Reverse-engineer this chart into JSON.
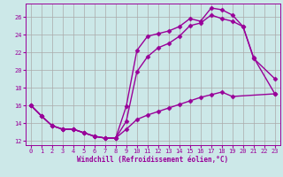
{
  "xlabel": "Windchill (Refroidissement éolien,°C)",
  "bg_color": "#cce8e8",
  "line_color": "#990099",
  "grid_color": "#aaaaaa",
  "xlim": [
    -0.5,
    23.5
  ],
  "ylim": [
    11.5,
    27.5
  ],
  "xticks": [
    0,
    1,
    2,
    3,
    4,
    5,
    6,
    7,
    8,
    9,
    10,
    11,
    12,
    13,
    14,
    15,
    16,
    17,
    18,
    19,
    20,
    21,
    22,
    23
  ],
  "yticks": [
    12,
    14,
    16,
    18,
    20,
    22,
    24,
    26
  ],
  "line1_x": [
    0,
    1,
    2,
    3,
    4,
    5,
    6,
    7,
    8,
    9,
    10,
    11,
    12,
    13,
    14,
    15,
    16,
    17,
    18,
    19,
    20,
    21,
    23
  ],
  "line1_y": [
    16.0,
    14.8,
    13.7,
    13.3,
    13.3,
    12.9,
    12.5,
    12.3,
    12.3,
    15.9,
    22.2,
    23.8,
    24.1,
    24.4,
    24.9,
    25.8,
    25.5,
    27.0,
    26.8,
    26.2,
    24.9,
    21.3,
    19.0
  ],
  "line2_x": [
    0,
    1,
    2,
    3,
    4,
    5,
    6,
    7,
    8,
    9,
    10,
    11,
    12,
    13,
    14,
    15,
    16,
    17,
    18,
    19,
    20,
    21,
    23
  ],
  "line2_y": [
    16.0,
    14.8,
    13.7,
    13.3,
    13.3,
    12.9,
    12.5,
    12.3,
    12.3,
    14.2,
    19.8,
    21.5,
    22.5,
    23.0,
    23.8,
    25.0,
    25.3,
    26.2,
    25.8,
    25.5,
    24.9,
    21.4,
    17.3
  ],
  "line3_x": [
    0,
    1,
    2,
    3,
    4,
    5,
    6,
    7,
    8,
    9,
    10,
    11,
    12,
    13,
    14,
    15,
    16,
    17,
    18,
    19,
    23
  ],
  "line3_y": [
    16.0,
    14.8,
    13.7,
    13.3,
    13.3,
    12.9,
    12.5,
    12.3,
    12.3,
    13.3,
    14.4,
    14.9,
    15.3,
    15.7,
    16.1,
    16.5,
    16.9,
    17.2,
    17.5,
    17.0,
    17.3
  ],
  "marker": "D",
  "markersize": 2.5,
  "linewidth": 1.0
}
